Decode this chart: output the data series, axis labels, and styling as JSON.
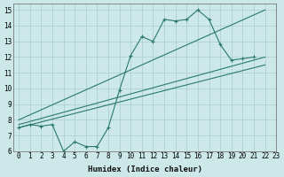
{
  "xlabel": "Humidex (Indice chaleur)",
  "bg_color": "#cce8e8",
  "grid_color": "#aacccc",
  "line_color": "#2a7a6a",
  "xlim": [
    -0.5,
    23
  ],
  "ylim": [
    6,
    15.4
  ],
  "xticks": [
    0,
    1,
    2,
    3,
    4,
    5,
    6,
    7,
    8,
    9,
    10,
    11,
    12,
    13,
    14,
    15,
    16,
    17,
    18,
    19,
    20,
    21,
    22,
    23
  ],
  "yticks": [
    6,
    7,
    8,
    9,
    10,
    11,
    12,
    13,
    14,
    15
  ],
  "series1_x": [
    0,
    1,
    2,
    3,
    4,
    5,
    6,
    7,
    8,
    9,
    10,
    11,
    12,
    13,
    14,
    15,
    16,
    17,
    18,
    19,
    20,
    21
  ],
  "series1_y": [
    7.5,
    7.7,
    7.6,
    7.7,
    6.0,
    6.6,
    6.3,
    6.3,
    7.5,
    9.9,
    12.1,
    13.3,
    13.0,
    14.4,
    14.3,
    14.4,
    15.0,
    14.4,
    12.8,
    11.8,
    11.9,
    12.0
  ],
  "line1_x": [
    0,
    22
  ],
  "line1_y": [
    7.5,
    11.5
  ],
  "line2_x": [
    0,
    22
  ],
  "line2_y": [
    8.0,
    15.0
  ],
  "line3_x": [
    0,
    22
  ],
  "line3_y": [
    7.7,
    12.0
  ]
}
